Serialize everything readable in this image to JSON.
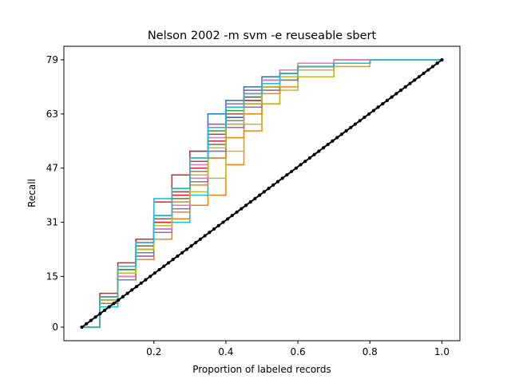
{
  "chart_data": {
    "type": "line",
    "title": "Nelson 2002 -m svm -e reuseable sbert",
    "xlabel": "Proportion of labeled records",
    "ylabel": "Recall",
    "xlim": [
      -0.05,
      1.05
    ],
    "ylim": [
      -4,
      83
    ],
    "xticks": [
      0.2,
      0.4,
      0.6,
      0.8,
      1.0
    ],
    "xtick_labels": [
      "0.2",
      "0.4",
      "0.6",
      "0.8",
      "1.0"
    ],
    "yticks": [
      0,
      15,
      31,
      47,
      63,
      79
    ],
    "ytick_labels": [
      "0",
      "15",
      "31",
      "47",
      "63",
      "79"
    ],
    "grid": false,
    "legend": "none",
    "series": [
      {
        "color": "#1f77b4",
        "x": [
          0,
          0.05,
          0.1,
          0.15,
          0.2,
          0.25,
          0.3,
          0.35,
          0.4,
          0.45,
          0.5,
          0.55,
          0.6,
          0.7,
          0.8,
          1.0
        ],
        "y": [
          0,
          9,
          17,
          24,
          33,
          41,
          52,
          63,
          67,
          71,
          74,
          76,
          77,
          78,
          79,
          79
        ]
      },
      {
        "color": "#ff7f0e",
        "x": [
          0,
          0.05,
          0.1,
          0.15,
          0.2,
          0.25,
          0.3,
          0.35,
          0.4,
          0.45,
          0.5,
          0.55,
          0.6,
          0.7,
          0.8,
          1.0
        ],
        "y": [
          0,
          7,
          14,
          20,
          26,
          32,
          36,
          39,
          48,
          58,
          66,
          71,
          74,
          77,
          79,
          79
        ]
      },
      {
        "color": "#2ca02c",
        "x": [
          0,
          0.05,
          0.1,
          0.15,
          0.2,
          0.25,
          0.3,
          0.35,
          0.4,
          0.45,
          0.5,
          0.55,
          0.6,
          0.7,
          0.8,
          1.0
        ],
        "y": [
          0,
          8,
          16,
          23,
          31,
          39,
          49,
          58,
          64,
          69,
          73,
          75,
          77,
          78,
          79,
          79
        ]
      },
      {
        "color": "#d62728",
        "x": [
          0,
          0.05,
          0.1,
          0.15,
          0.2,
          0.25,
          0.3,
          0.35,
          0.4,
          0.45,
          0.5,
          0.55,
          0.6,
          0.7,
          0.8,
          1.0
        ],
        "y": [
          0,
          10,
          19,
          26,
          37,
          45,
          52,
          60,
          65,
          70,
          73,
          75,
          77,
          79,
          79,
          79
        ]
      },
      {
        "color": "#9467bd",
        "x": [
          0,
          0.05,
          0.1,
          0.15,
          0.2,
          0.25,
          0.3,
          0.35,
          0.4,
          0.45,
          0.5,
          0.55,
          0.6,
          0.7,
          0.8,
          1.0
        ],
        "y": [
          0,
          9,
          17,
          25,
          33,
          40,
          50,
          60,
          66,
          70,
          72,
          75,
          77,
          78,
          79,
          79
        ]
      },
      {
        "color": "#8c564b",
        "x": [
          0,
          0.05,
          0.1,
          0.15,
          0.2,
          0.25,
          0.3,
          0.35,
          0.4,
          0.45,
          0.5,
          0.55,
          0.6,
          0.7,
          0.8,
          1.0
        ],
        "y": [
          0,
          8,
          15,
          22,
          30,
          37,
          45,
          54,
          62,
          68,
          72,
          75,
          77,
          78,
          79,
          79
        ]
      },
      {
        "color": "#e377c2",
        "x": [
          0,
          0.05,
          0.1,
          0.15,
          0.2,
          0.25,
          0.3,
          0.35,
          0.4,
          0.45,
          0.5,
          0.55,
          0.6,
          0.7,
          0.8,
          1.0
        ],
        "y": [
          0,
          9,
          18,
          25,
          32,
          40,
          48,
          56,
          63,
          69,
          73,
          76,
          78,
          79,
          79,
          79
        ]
      },
      {
        "color": "#7f7f7f",
        "x": [
          0,
          0.05,
          0.1,
          0.15,
          0.2,
          0.25,
          0.3,
          0.35,
          0.4,
          0.45,
          0.5,
          0.55,
          0.6,
          0.7,
          0.8,
          1.0
        ],
        "y": [
          0,
          8,
          16,
          23,
          30,
          37,
          44,
          52,
          60,
          66,
          71,
          74,
          76,
          78,
          79,
          79
        ]
      },
      {
        "color": "#bcbd22",
        "x": [
          0,
          0.05,
          0.1,
          0.15,
          0.2,
          0.25,
          0.3,
          0.35,
          0.4,
          0.45,
          0.5,
          0.55,
          0.6,
          0.7,
          0.8,
          1.0
        ],
        "y": [
          0,
          7,
          15,
          22,
          28,
          34,
          40,
          44,
          52,
          60,
          66,
          70,
          74,
          77,
          79,
          79
        ]
      },
      {
        "color": "#17becf",
        "x": [
          0,
          0.05,
          0.1,
          0.15,
          0.2,
          0.25,
          0.3,
          0.35,
          0.4,
          0.45,
          0.5,
          0.55,
          0.6,
          0.7,
          0.8,
          1.0
        ],
        "y": [
          0,
          6,
          14,
          22,
          38,
          31,
          39,
          50,
          60,
          67,
          72,
          75,
          77,
          78,
          79,
          79
        ]
      },
      {
        "color": "#1f77b4",
        "x": [
          0,
          0.05,
          0.1,
          0.15,
          0.2,
          0.25,
          0.3,
          0.35,
          0.4,
          0.45,
          0.5,
          0.55,
          0.6,
          0.7,
          0.8,
          1.0
        ],
        "y": [
          0,
          8,
          15,
          22,
          29,
          36,
          45,
          55,
          62,
          67,
          71,
          74,
          76,
          78,
          79,
          79
        ]
      },
      {
        "color": "#ff7f0e",
        "x": [
          0,
          0.05,
          0.1,
          0.15,
          0.2,
          0.25,
          0.3,
          0.35,
          0.4,
          0.45,
          0.5,
          0.55,
          0.6,
          0.7,
          0.8,
          1.0
        ],
        "y": [
          0,
          7,
          15,
          21,
          28,
          34,
          42,
          50,
          56,
          63,
          69,
          73,
          76,
          78,
          79,
          79
        ]
      },
      {
        "color": "#2ca02c",
        "x": [
          0,
          0.05,
          0.1,
          0.15,
          0.2,
          0.25,
          0.3,
          0.35,
          0.4,
          0.45,
          0.5,
          0.55,
          0.6,
          0.7,
          0.8,
          1.0
        ],
        "y": [
          0,
          9,
          17,
          24,
          31,
          38,
          47,
          57,
          63,
          68,
          72,
          75,
          77,
          78,
          79,
          79
        ]
      },
      {
        "color": "#d62728",
        "x": [
          0,
          0.05,
          0.1,
          0.15,
          0.2,
          0.25,
          0.3,
          0.35,
          0.4,
          0.45,
          0.5,
          0.55,
          0.6,
          0.7,
          0.8,
          1.0
        ],
        "y": [
          0,
          8,
          16,
          24,
          31,
          39,
          47,
          55,
          61,
          67,
          71,
          74,
          76,
          78,
          79,
          79
        ]
      },
      {
        "color": "#9467bd",
        "x": [
          0,
          0.05,
          0.1,
          0.15,
          0.2,
          0.25,
          0.3,
          0.35,
          0.4,
          0.45,
          0.5,
          0.55,
          0.6,
          0.7,
          0.8,
          1.0
        ],
        "y": [
          0,
          7,
          14,
          21,
          28,
          35,
          43,
          52,
          59,
          65,
          70,
          73,
          76,
          78,
          79,
          79
        ]
      },
      {
        "color": "#8c564b",
        "x": [
          0,
          0.05,
          0.1,
          0.15,
          0.2,
          0.25,
          0.3,
          0.35,
          0.4,
          0.45,
          0.5,
          0.55,
          0.6,
          0.7,
          0.8,
          1.0
        ],
        "y": [
          0,
          9,
          16,
          24,
          32,
          40,
          49,
          57,
          63,
          68,
          72,
          75,
          77,
          78,
          79,
          79
        ]
      },
      {
        "color": "#e377c2",
        "x": [
          0,
          0.05,
          0.1,
          0.15,
          0.2,
          0.25,
          0.3,
          0.35,
          0.4,
          0.45,
          0.5,
          0.55,
          0.6,
          0.7,
          0.8,
          1.0
        ],
        "y": [
          0,
          8,
          15,
          22,
          29,
          36,
          44,
          53,
          60,
          66,
          70,
          74,
          76,
          78,
          79,
          79
        ]
      },
      {
        "color": "#7f7f7f",
        "x": [
          0,
          0.05,
          0.1,
          0.15,
          0.2,
          0.25,
          0.3,
          0.35,
          0.4,
          0.45,
          0.5,
          0.55,
          0.6,
          0.7,
          0.8,
          1.0
        ],
        "y": [
          0,
          7,
          14,
          22,
          30,
          38,
          46,
          54,
          61,
          66,
          70,
          73,
          76,
          78,
          79,
          79
        ]
      },
      {
        "color": "#bcbd22",
        "x": [
          0,
          0.05,
          0.1,
          0.15,
          0.2,
          0.25,
          0.3,
          0.35,
          0.4,
          0.45,
          0.5,
          0.55,
          0.6,
          0.7,
          0.8,
          1.0
        ],
        "y": [
          0,
          8,
          16,
          23,
          30,
          37,
          45,
          53,
          60,
          66,
          71,
          74,
          76,
          78,
          79,
          79
        ]
      },
      {
        "color": "#17becf",
        "x": [
          0,
          0.05,
          0.1,
          0.15,
          0.2,
          0.25,
          0.3,
          0.35,
          0.4,
          0.45,
          0.5,
          0.55,
          0.6,
          0.7,
          0.8,
          1.0
        ],
        "y": [
          0,
          9,
          18,
          25,
          33,
          41,
          50,
          59,
          65,
          69,
          72,
          75,
          77,
          78,
          79,
          79
        ]
      }
    ],
    "baseline": {
      "color": "#000000",
      "x": [
        0,
        1.0
      ],
      "y": [
        0,
        79
      ]
    }
  }
}
